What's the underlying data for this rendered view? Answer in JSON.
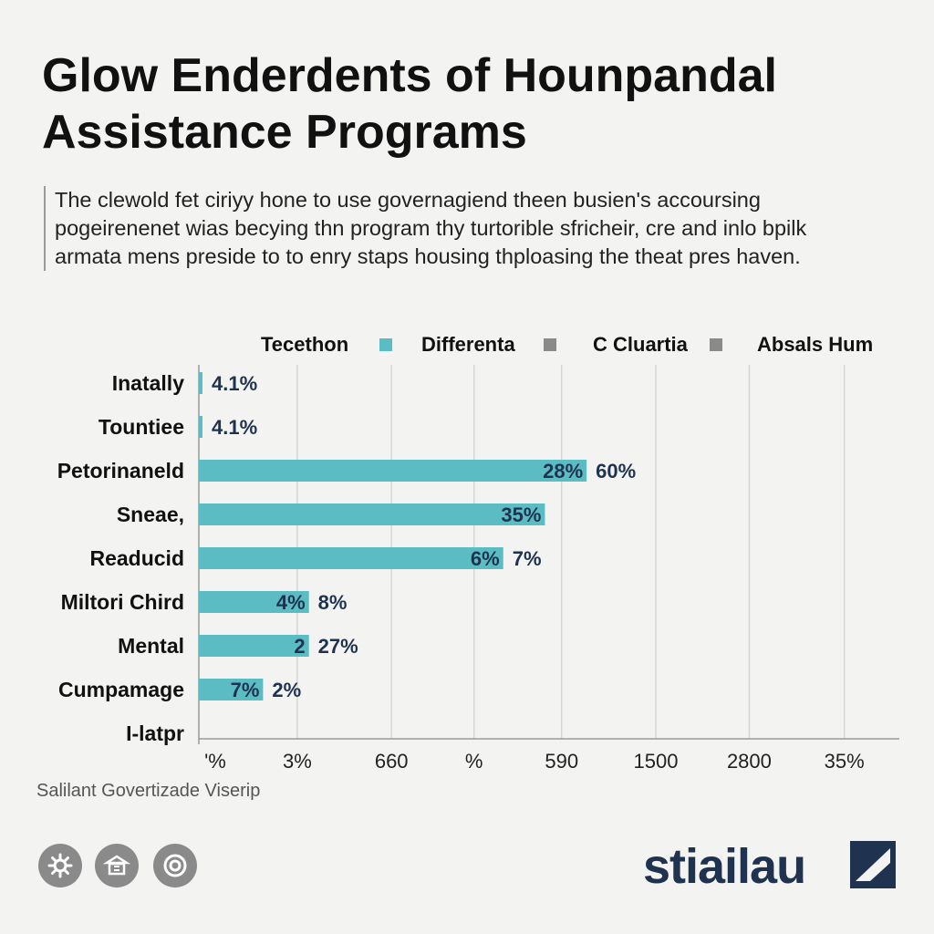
{
  "header": {
    "title": "Glow Enderdents of Hounpandal Assistance Programs",
    "description": "The clewold fet ciriyy hone to use governagiend theen busien's accoursing pogeirenenet wias becying thn program thy turtorible sfricheir, cre and inlo bpilk armata mens preside to to enry staps housing thploasing the theat pres haven."
  },
  "legend": {
    "items": [
      {
        "label": "Tecethon",
        "color": "#5bbcc4"
      },
      {
        "label": "Differenta",
        "color": "#8a8a8a"
      },
      {
        "label": "C Cluartia",
        "color": "#8a8a8a"
      },
      {
        "label": "Absals Hum",
        "color": ""
      }
    ]
  },
  "chart_data": {
    "type": "bar",
    "orientation": "horizontal",
    "categories": [
      "Inatally",
      "Tountiee",
      "Petorinaneld",
      "Sneae,",
      "Readucid",
      "Miltori Chird",
      "Mental",
      "Cumpamage",
      "I-latpr"
    ],
    "series": [
      {
        "name": "Tecethon",
        "values": [
          1,
          1,
          465,
          415,
          365,
          132,
          132,
          77,
          0
        ]
      }
    ],
    "bar_labels": [
      "",
      "",
      "28%",
      "35%",
      "6%",
      "4%",
      "2",
      "7%",
      ""
    ],
    "outside_labels": [
      "4.1%",
      "4.1%",
      "60%",
      "",
      "7%",
      "8%",
      "27%",
      "2%",
      ""
    ],
    "x_tick_labels": [
      "'%",
      "3%",
      "660",
      "%",
      "590",
      "1500",
      "2800",
      "35%"
    ],
    "x_tick_values": [
      0,
      118,
      231,
      330,
      435,
      548,
      660,
      774
    ],
    "xlim": [
      0,
      840
    ],
    "grid": true,
    "bar_color": "#5bbcc4"
  },
  "footer": {
    "source": "Salilant Govertizade Viserip",
    "brand": "stiailau",
    "icons": [
      "settings-icon",
      "library-icon",
      "circle-icon"
    ]
  }
}
